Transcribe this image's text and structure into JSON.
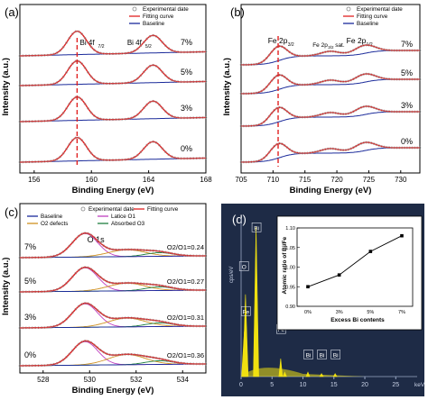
{
  "chart_data": [
    {
      "panel": "(a)",
      "type": "line",
      "xlabel": "Binding Energy (eV)",
      "ylabel": "Intensity (a.u.)",
      "xlim": [
        155,
        168
      ],
      "x_ticks": [
        "156",
        "160",
        "164",
        "168"
      ],
      "legend": [
        "Experimental date",
        "Fitting curve",
        "Baseline"
      ],
      "legend_position": "top-right",
      "peak_labels": [
        "Bi 4f",
        "7/2",
        "Bi 4f",
        "5/2"
      ],
      "series": [
        {
          "name": "0%",
          "peak_positions_eV": [
            159.0,
            164.3
          ]
        },
        {
          "name": "3%",
          "peak_positions_eV": [
            159.0,
            164.3
          ]
        },
        {
          "name": "5%",
          "peak_positions_eV": [
            159.0,
            164.3
          ]
        },
        {
          "name": "7%",
          "peak_positions_eV": [
            159.0,
            164.3
          ]
        }
      ],
      "reference_line_eV": 159.0
    },
    {
      "panel": "(b)",
      "type": "line",
      "xlabel": "Binding Energy (eV)",
      "ylabel": "Intensity (a.u.)",
      "xlim": [
        705,
        733
      ],
      "x_ticks": [
        "705",
        "710",
        "715",
        "720",
        "725",
        "730"
      ],
      "legend": [
        "Experimental date",
        "Fitting curve",
        "Baseline"
      ],
      "legend_position": "top-right",
      "peak_labels": [
        "Fe 2p",
        "3/2",
        "Fe 2p",
        "3/2",
        "sat.",
        "Fe 2p",
        "1/2"
      ],
      "series": [
        {
          "name": "0%",
          "peak_positions_eV": [
            710.8,
            719.0,
            724.3
          ]
        },
        {
          "name": "3%",
          "peak_positions_eV": [
            710.8,
            719.0,
            724.3
          ]
        },
        {
          "name": "5%",
          "peak_positions_eV": [
            710.8,
            719.0,
            724.3
          ]
        },
        {
          "name": "7%",
          "peak_positions_eV": [
            710.8,
            719.0,
            724.3
          ]
        }
      ],
      "reference_line_eV": 710.8
    },
    {
      "panel": "(c)",
      "type": "line",
      "xlabel": "Binding Energy (eV)",
      "ylabel": "Intensity (a.u.)",
      "xlim": [
        527,
        535
      ],
      "x_ticks": [
        "528",
        "530",
        "532",
        "534"
      ],
      "legend": [
        "Experimental date",
        "Fitting curve",
        "Baseline",
        "Latice O1",
        "O2 defects",
        "Absorbed O3"
      ],
      "legend_position": "top",
      "peak_labels": [
        "O 1s"
      ],
      "series": [
        {
          "name": "0%",
          "ratio": "O2/O1=0.36"
        },
        {
          "name": "3%",
          "ratio": "O2/O1=0.31"
        },
        {
          "name": "5%",
          "ratio": "O2/O1=0.27"
        },
        {
          "name": "7%",
          "ratio": "O2/O1=0.24"
        }
      ]
    },
    {
      "panel": "(d)",
      "type": "bar",
      "title": "",
      "xlabel": "keV",
      "ylabel": "cps/eV",
      "x_ticks": [
        "0",
        "5",
        "10",
        "15",
        "20",
        "25"
      ],
      "xlim": [
        0,
        27
      ],
      "peaks": [
        {
          "label": "O",
          "x": 0.52,
          "height": 0.3
        },
        {
          "label": "Bi",
          "x": 2.42,
          "height": 1.0
        },
        {
          "label": "Fe",
          "x": 0.71,
          "height": 0.55
        },
        {
          "label": "Fe",
          "x": 6.4,
          "height": 0.12
        },
        {
          "label": "Fe",
          "x": 7.06,
          "height": 0.03
        },
        {
          "label": "Bi",
          "x": 10.8,
          "height": 0.03
        },
        {
          "label": "Bi",
          "x": 13.0,
          "height": 0.02
        },
        {
          "label": "Bi",
          "x": 15.2,
          "height": 0.02
        }
      ],
      "inset": {
        "type": "line",
        "xlabel": "Excess Bi contents",
        "ylabel": "Atomic ratio of Bi/Fe",
        "categories": [
          "0%",
          "3%",
          "5%",
          "7%"
        ],
        "values": [
          0.95,
          0.98,
          1.04,
          1.08
        ],
        "ylim": [
          0.9,
          1.1
        ],
        "y_ticks": [
          "0.90",
          "0.95",
          "1.00",
          "1.05",
          "1.10"
        ]
      }
    }
  ]
}
